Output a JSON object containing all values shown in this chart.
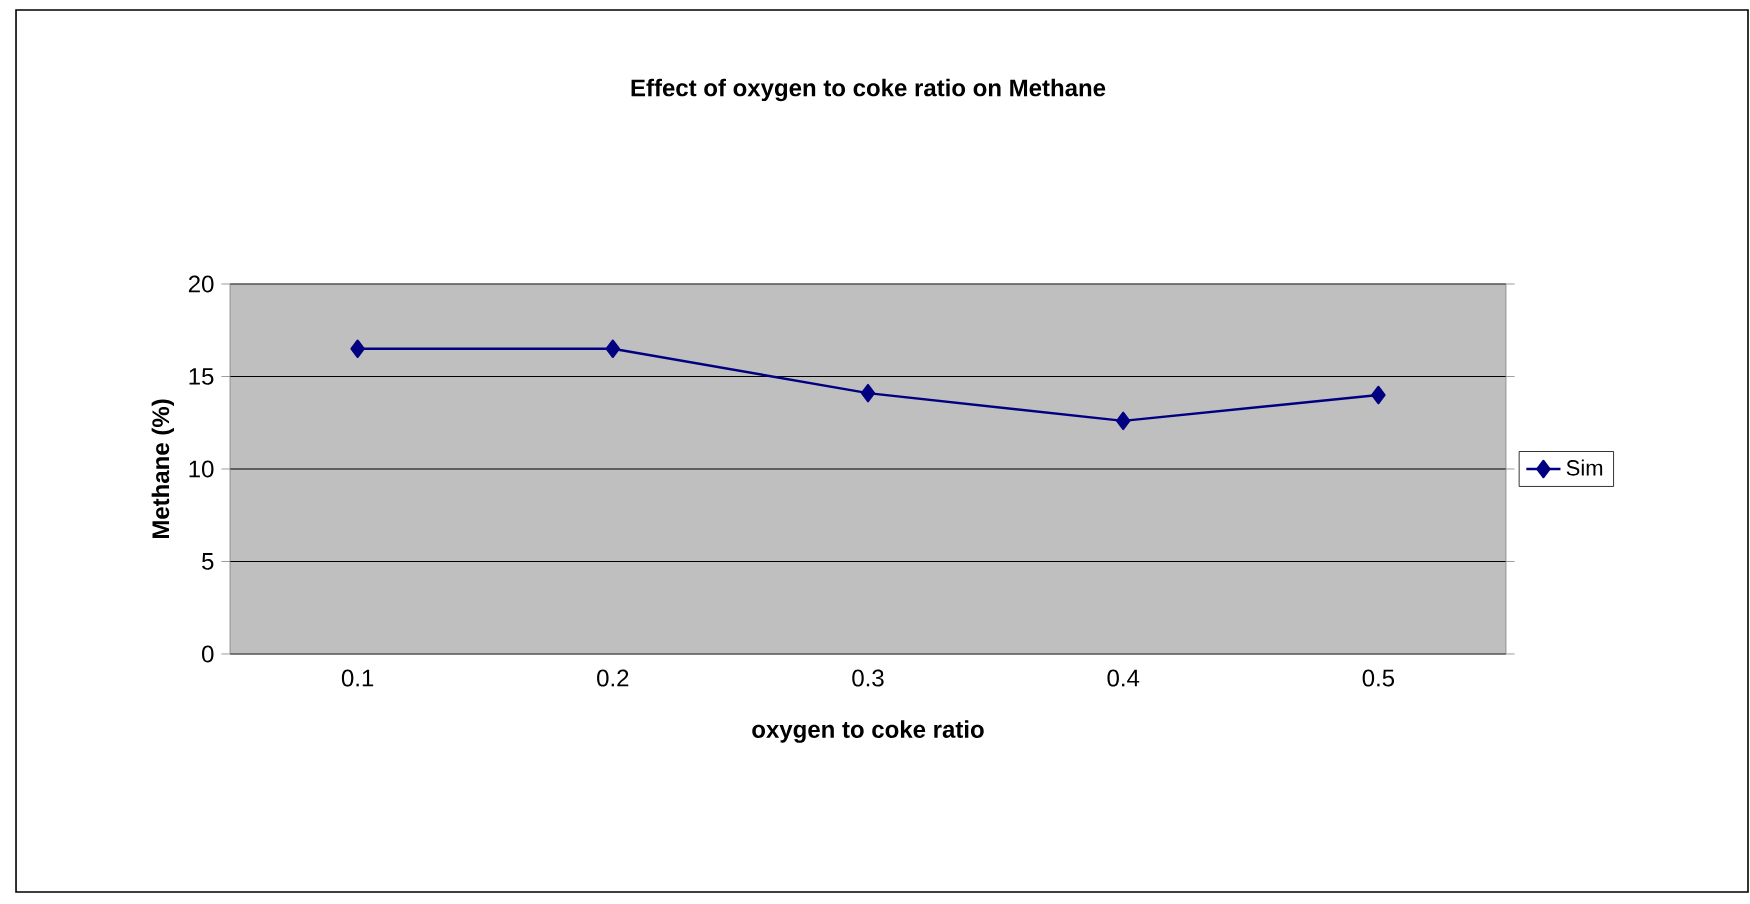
{
  "chart_data": {
    "type": "line",
    "title": "Effect of oxygen to coke ratio on Methane",
    "xlabel": "oxygen to coke ratio",
    "ylabel": "Methane (%)",
    "categories": [
      "0.1",
      "0.2",
      "0.3",
      "0.4",
      "0.5"
    ],
    "series": [
      {
        "name": "Sim",
        "color": "#000080",
        "values": [
          16.5,
          16.5,
          14.1,
          12.6,
          14.0
        ]
      }
    ],
    "ylim": [
      0,
      20
    ],
    "yticks": [
      0,
      5,
      10,
      15,
      20
    ],
    "grid": "y",
    "legend": "right",
    "marker": "diamond",
    "line_style": "solid"
  }
}
